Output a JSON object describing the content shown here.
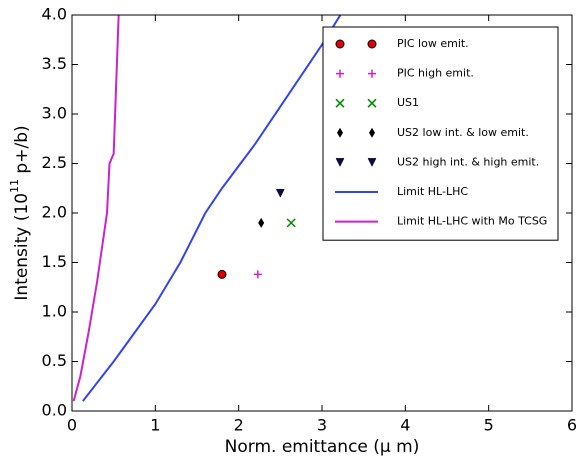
{
  "chart_data": {
    "type": "scatter",
    "xlabel": "Norm. emittance (μ m)",
    "ylabel": {
      "before": "Intensity (10",
      "sup": "11",
      "after": " p+/b)"
    },
    "xlim": [
      0,
      6
    ],
    "xticks": [
      0,
      1,
      2,
      3,
      4,
      5,
      6
    ],
    "ylim": [
      0,
      4
    ],
    "yticks": [
      {
        "value": 0,
        "label": "0.0"
      },
      0.5,
      {
        "value": 1,
        "label": "1.0"
      },
      1.5,
      {
        "value": 2,
        "label": "2.0"
      },
      2.5,
      {
        "value": 3,
        "label": "3.0"
      },
      3.5,
      {
        "value": 4,
        "label": "4.0"
      }
    ],
    "legend": "upper right",
    "series": [
      {
        "name": "PIC low emit.",
        "kind": "scatter",
        "marker": "o",
        "color": "#e00000",
        "x": [
          1.8
        ],
        "values": [
          1.38
        ]
      },
      {
        "name": "PIC high emit.",
        "kind": "scatter",
        "marker": "+",
        "color": "#cc22cc",
        "x": [
          2.23
        ],
        "values": [
          1.38
        ]
      },
      {
        "name": "US1",
        "kind": "scatter",
        "marker": "x",
        "color": "#008800",
        "x": [
          2.63
        ],
        "values": [
          1.9
        ]
      },
      {
        "name": "US2 low int. & low emit.",
        "kind": "scatter",
        "marker": "d",
        "color": "#000000",
        "x": [
          2.27
        ],
        "values": [
          1.9
        ]
      },
      {
        "name": "US2 high int. & high emit.",
        "kind": "scatter",
        "marker": "v",
        "color": "#0a0a50",
        "x": [
          2.5
        ],
        "values": [
          2.2
        ]
      },
      {
        "name": "Limit HL-LHC",
        "kind": "line",
        "color": "#3344ee",
        "x": [
          0.13,
          0.5,
          1.0,
          1.3,
          1.6,
          1.8,
          2.2,
          2.6,
          3.0,
          3.22
        ],
        "values": [
          0.1,
          0.5,
          1.08,
          1.5,
          2.0,
          2.25,
          2.7,
          3.2,
          3.7,
          4.0
        ]
      },
      {
        "name": "Limit HL-LHC with Mo TCSG",
        "kind": "line",
        "color": "#cc22cc",
        "x": [
          0.02,
          0.1,
          0.2,
          0.3,
          0.42,
          0.45,
          0.5,
          0.53,
          0.56
        ],
        "values": [
          0.1,
          0.35,
          0.8,
          1.3,
          2.0,
          2.5,
          2.6,
          3.3,
          4.0
        ]
      }
    ]
  }
}
